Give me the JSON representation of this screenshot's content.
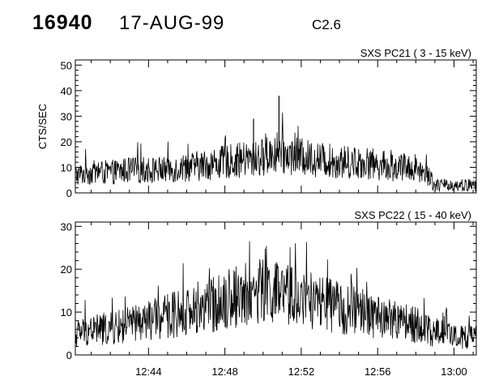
{
  "header": {
    "event_id": "16940",
    "date": "17-AUG-99",
    "flare_class": "C2.6"
  },
  "chart_data": [
    {
      "type": "line",
      "title": "SXS PC21  (  3 - 15 keV)",
      "ylabel": "CTS/SEC",
      "xlabel": "",
      "xlim": [
        "12:40:10",
        "13:01:10"
      ],
      "ylim": [
        0,
        52
      ],
      "yticks": [
        0,
        10,
        20,
        30,
        40,
        50
      ],
      "x_tick_labels": [],
      "series": [
        {
          "values_desc": "noisy time series of counts per second",
          "x": [
            "12:40:10",
            "12:41:00",
            "12:42:00",
            "12:43:00",
            "12:44:00",
            "12:45:00",
            "12:46:00",
            "12:47:00",
            "12:48:00",
            "12:49:00",
            "12:49:30",
            "12:50:00",
            "12:50:50",
            "12:51:00",
            "12:52:00",
            "12:53:00",
            "12:54:00",
            "12:55:00",
            "12:56:00",
            "12:57:00",
            "12:58:00",
            "12:58:40",
            "12:59:00",
            "13:00:00",
            "13:01:10"
          ],
          "y": [
            7,
            8,
            8,
            9,
            9,
            9,
            10,
            11,
            12,
            13,
            13,
            14,
            16,
            15,
            14,
            13,
            12,
            12,
            11,
            10,
            10,
            7,
            3,
            3,
            3
          ],
          "spikes": [
            [
              "12:49:30",
              29
            ],
            [
              "12:50:50",
              38
            ]
          ]
        }
      ]
    },
    {
      "type": "line",
      "title": "SXS PC22  ( 15 - 40 keV)",
      "ylabel": "",
      "xlabel": "",
      "xlim": [
        "12:40:10",
        "13:01:10"
      ],
      "ylim": [
        0,
        31
      ],
      "yticks": [
        0,
        10,
        20,
        30
      ],
      "x_tick_labels": [
        "12:44",
        "12:48",
        "12:52",
        "12:56",
        "13:00"
      ],
      "series": [
        {
          "values_desc": "noisy time series of counts per second",
          "x": [
            "12:40:10",
            "12:41:00",
            "12:42:00",
            "12:43:00",
            "12:44:00",
            "12:45:00",
            "12:46:00",
            "12:47:00",
            "12:48:00",
            "12:49:00",
            "12:50:00",
            "12:51:00",
            "12:52:00",
            "12:53:00",
            "12:54:00",
            "12:55:00",
            "12:56:00",
            "12:57:00",
            "12:58:00",
            "12:59:00",
            "12:59:40",
            "13:00:00",
            "13:01:10"
          ],
          "y": [
            5,
            6,
            6,
            7,
            8,
            9,
            10,
            11,
            13,
            14,
            15,
            14,
            13,
            12,
            11,
            10,
            9,
            8,
            7,
            5,
            7,
            4,
            4
          ]
        }
      ]
    }
  ]
}
